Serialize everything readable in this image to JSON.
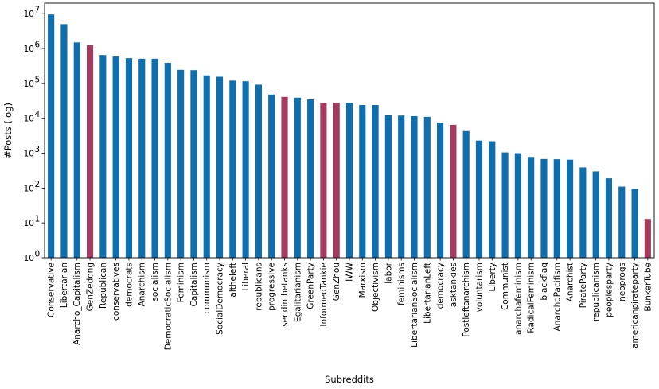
{
  "chart_data": {
    "type": "bar",
    "xlabel": "Subreddits",
    "ylabel": "#Posts (log)",
    "yscale": "log",
    "ylim": [
      1,
      20000000
    ],
    "yticks": [
      {
        "value": 1,
        "base": "10",
        "exp": "0"
      },
      {
        "value": 10,
        "base": "10",
        "exp": "1"
      },
      {
        "value": 100,
        "base": "10",
        "exp": "2"
      },
      {
        "value": 1000,
        "base": "10",
        "exp": "3"
      },
      {
        "value": 10000,
        "base": "10",
        "exp": "4"
      },
      {
        "value": 100000,
        "base": "10",
        "exp": "5"
      },
      {
        "value": 1000000,
        "base": "10",
        "exp": "6"
      },
      {
        "value": 10000000,
        "base": "10",
        "exp": "7"
      }
    ],
    "grid": false,
    "colors": {
      "default": "#0f6fae",
      "highlight": "#a33b61"
    },
    "categories": [
      "Conservative",
      "Libertarian",
      "Anarcho_Capitalism",
      "GenZedong",
      "Republican",
      "conservatives",
      "democrats",
      "Anarchism",
      "socialism",
      "DemocraticSocialism",
      "Feminism",
      "Capitalism",
      "communism",
      "SocialDemocracy",
      "altheleft",
      "Liberal",
      "republicans",
      "progressive",
      "sendinthetanks",
      "Egalitarianism",
      "GreenParty",
      "InformedTankie",
      "GenZhou",
      "IWW",
      "Marxism",
      "Objectivism",
      "labor",
      "feminisms",
      "LibertarianSocialism",
      "LibertarianLeft",
      "democracy",
      "asktankies",
      "Postleftanarchism",
      "voluntarism",
      "Liberty",
      "Communist",
      "anarchafeminism",
      "RadicalFeminism",
      "blackflag",
      "AnarchoPacifism",
      "Anarchist",
      "PirateParty",
      "republicanism",
      "peoplesparty",
      "neoprogs",
      "americanpirateparty",
      "BunkerTube"
    ],
    "values": [
      9500000,
      5000000,
      1500000,
      1250000,
      650000,
      590000,
      530000,
      510000,
      510000,
      390000,
      245000,
      240000,
      170000,
      155000,
      120000,
      115000,
      92000,
      48000,
      41000,
      39000,
      35000,
      28000,
      28000,
      28000,
      24000,
      24000,
      12500,
      12000,
      11500,
      11000,
      7500,
      6500,
      4300,
      2300,
      2200,
      1050,
      1000,
      780,
      680,
      670,
      650,
      390,
      300,
      190,
      110,
      95,
      13
    ],
    "highlighted": [
      "GenZedong",
      "sendinthetanks",
      "InformedTankie",
      "GenZhou",
      "asktankies",
      "BunkerTube"
    ]
  }
}
